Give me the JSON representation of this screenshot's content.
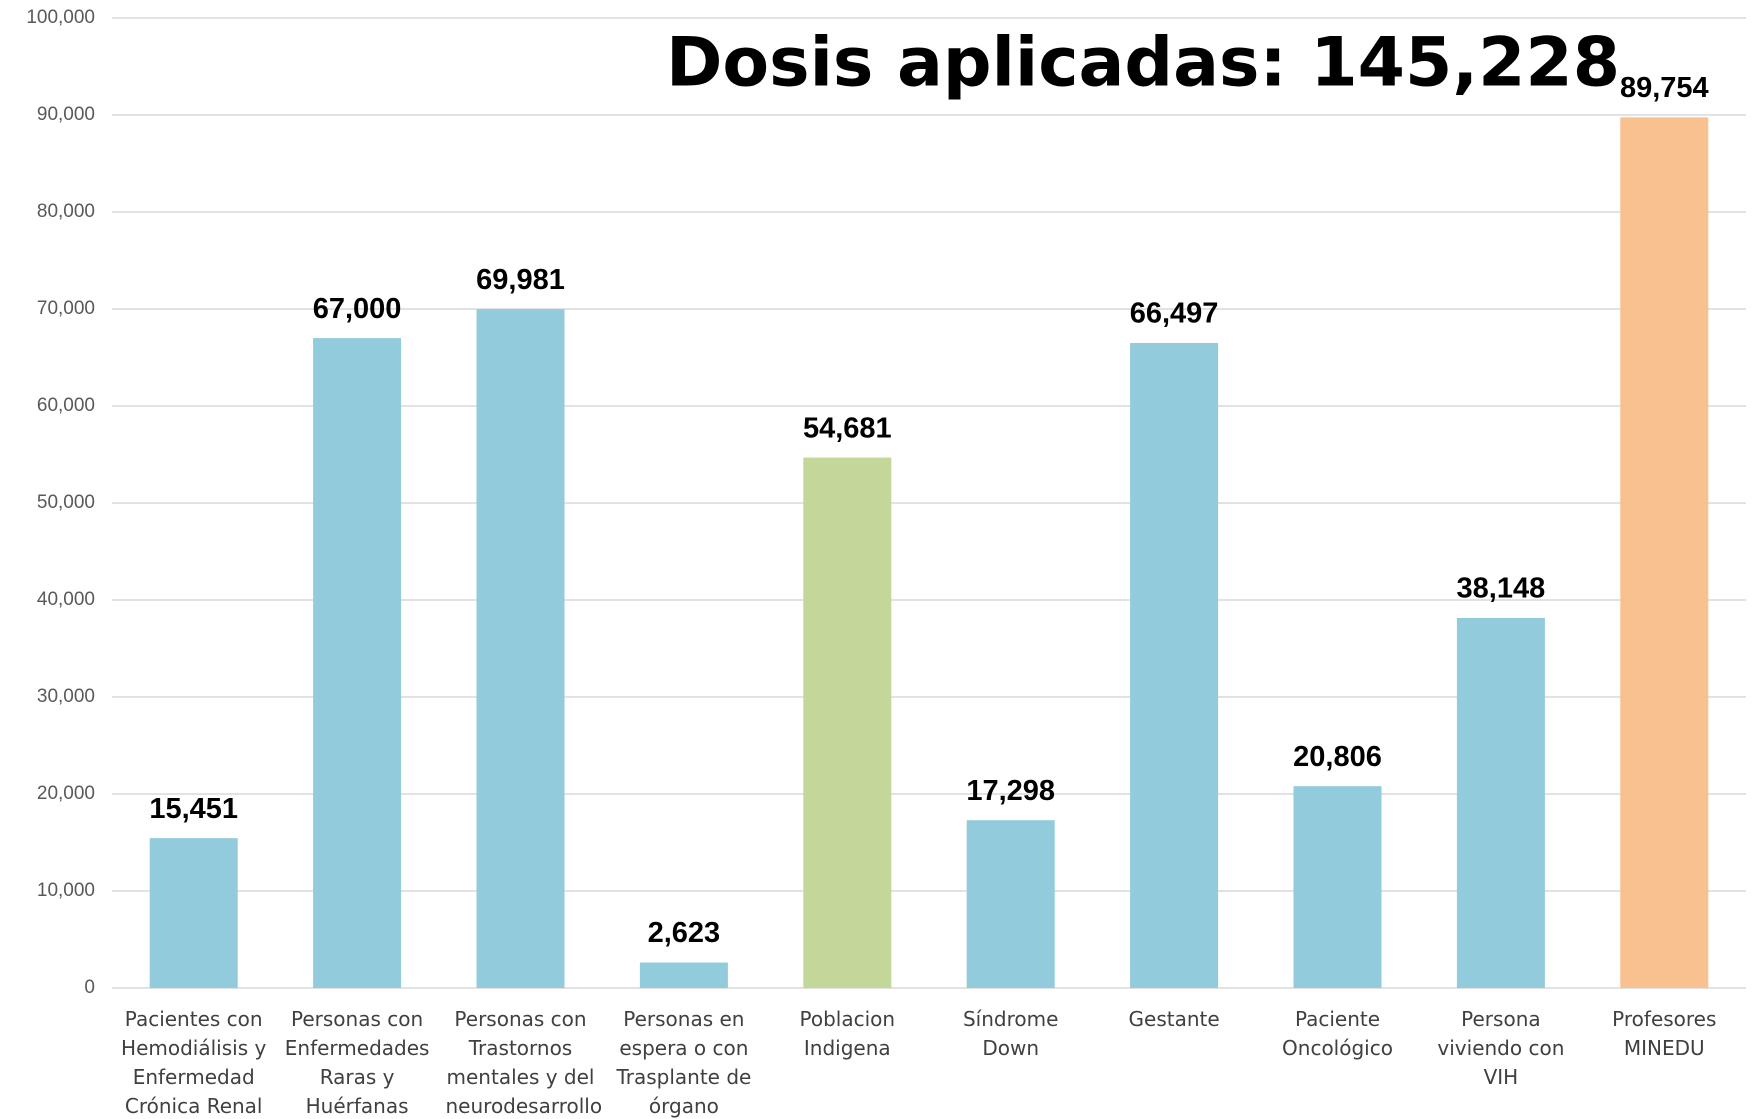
{
  "chart_data": {
    "type": "bar",
    "title": "Dosis aplicadas:  145,228",
    "categories": [
      "Pacientes con Hemodiálisis y Enfermedad Crónica Renal",
      "Personas con Enfermedades Raras y Huérfanas",
      "Personas con Trastornos mentales y del neurodesarrollo",
      "Personas en espera  o con Trasplante de órgano",
      "Poblacion Indigena",
      "Síndrome Down",
      "Gestante",
      "Paciente Oncológico",
      "Persona viviendo con VIH",
      "Profesores MINEDU"
    ],
    "values": [
      15451,
      67000,
      69981,
      2623,
      54681,
      17298,
      66497,
      20806,
      38148,
      89754
    ],
    "value_labels": [
      "15,451",
      "67,000",
      "69,981",
      "2,623",
      "54,681",
      "17,298",
      "66,497",
      "20,806",
      "38,148",
      "89,754"
    ],
    "colors": [
      "#92cbdc",
      "#92cbdc",
      "#92cbdc",
      "#92cbdc",
      "#c4d79b",
      "#92cbdc",
      "#92cbdc",
      "#92cbdc",
      "#92cbdc",
      "#f9c090"
    ],
    "ylim": [
      0,
      100000
    ],
    "yticks": [
      0,
      {
        "value": 10000,
        "label": "10,000"
      },
      {
        "value": 20000,
        "label": "20,000"
      },
      {
        "value": 30000,
        "label": "30,000"
      },
      {
        "value": 40000,
        "label": "40,000"
      },
      {
        "value": 50000,
        "label": "50,000"
      },
      {
        "value": 60000,
        "label": "60,000"
      },
      {
        "value": 70000,
        "label": "70,000"
      },
      {
        "value": 80000,
        "label": "80,000"
      },
      {
        "value": 90000,
        "label": "90,000"
      },
      {
        "value": 100000,
        "label": "100,000"
      }
    ],
    "grid": true
  }
}
